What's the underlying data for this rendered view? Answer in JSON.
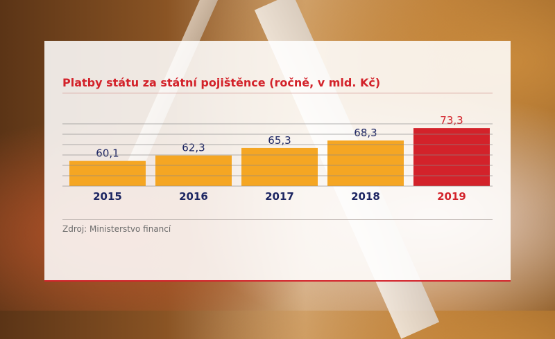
{
  "title": "Platby státu za státní pojištěnce (ročně, v mld. Kč)",
  "source": "Zdroj: Ministerstvo financí",
  "colors": {
    "bar": "#f5a623",
    "highlight": "#d3222a",
    "value_text": "#1c2562",
    "title": "#d3222a"
  },
  "chart_data": {
    "type": "bar",
    "title": "Platby státu za státní pojištěnce (ročně, v mld. Kč)",
    "categories": [
      "2015",
      "2016",
      "2017",
      "2018",
      "2019"
    ],
    "values": [
      60.1,
      62.3,
      65.3,
      68.3,
      73.3
    ],
    "value_labels": [
      "60,1",
      "62,3",
      "65,3",
      "68,3",
      "73,3"
    ],
    "highlight_index": 4,
    "xlabel": "",
    "ylabel": "",
    "ylim": [
      50,
      75
    ],
    "grid": true,
    "legend": "none"
  }
}
